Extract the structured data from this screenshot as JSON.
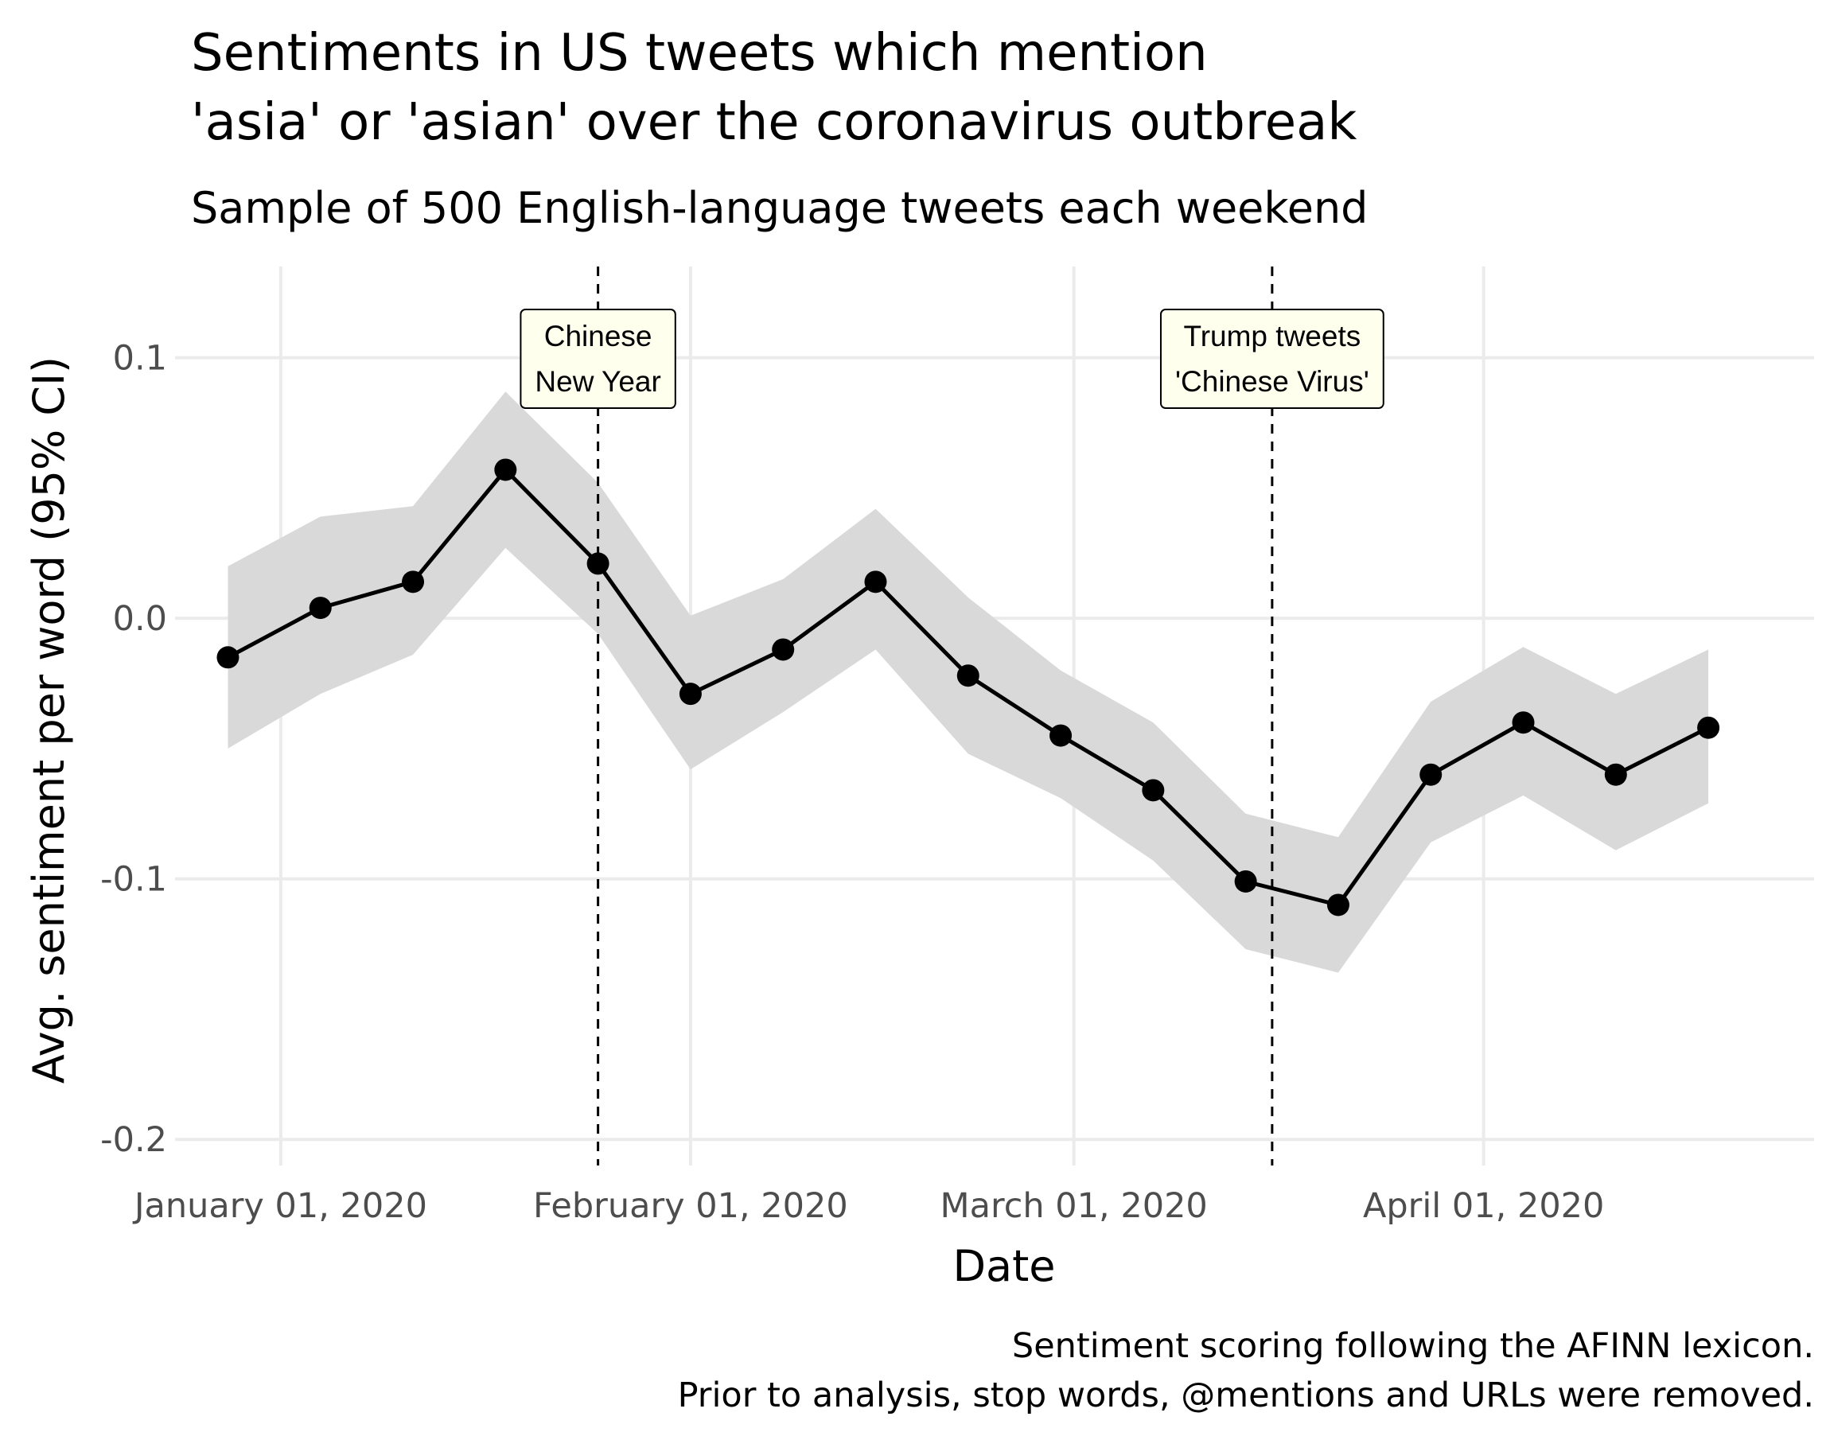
{
  "chart_data": {
    "type": "line",
    "title_lines": [
      "Sentiments in US tweets which mention",
      "'asia' or 'asian' over the coronavirus outbreak"
    ],
    "subtitle": "Sample of 500 English-language tweets each weekend",
    "xlabel": "Date",
    "ylabel": "Avg. sentiment per word (95% CI)",
    "caption_lines": [
      "Sentiment scoring following the AFINN lexicon.",
      "Prior to analysis, stop words, @mentions and URLs were removed."
    ],
    "xlim": [
      "2019-12-24",
      "2020-04-26"
    ],
    "ylim": [
      -0.21,
      0.135
    ],
    "x_ticks": [
      {
        "date": "2020-01-01",
        "label": "January 01, 2020"
      },
      {
        "date": "2020-02-01",
        "label": "February 01, 2020"
      },
      {
        "date": "2020-03-01",
        "label": "March 01, 2020"
      },
      {
        "date": "2020-04-01",
        "label": "April 01, 2020"
      }
    ],
    "y_ticks": [
      {
        "value": 0.1,
        "label": "0.1"
      },
      {
        "value": 0.0,
        "label": "0.0"
      },
      {
        "value": -0.1,
        "label": "-0.1"
      },
      {
        "value": -0.2,
        "label": "-0.2"
      }
    ],
    "grid": true,
    "series": [
      {
        "x": [
          "2019-12-28",
          "2020-01-04",
          "2020-01-11",
          "2020-01-18",
          "2020-01-25",
          "2020-02-01",
          "2020-02-08",
          "2020-02-15",
          "2020-02-22",
          "2020-02-29",
          "2020-03-07",
          "2020-03-14",
          "2020-03-21",
          "2020-03-28",
          "2020-04-04",
          "2020-04-11",
          "2020-04-18"
        ],
        "y": [
          -0.015,
          0.004,
          0.014,
          0.057,
          0.021,
          -0.029,
          -0.012,
          0.014,
          -0.022,
          -0.045,
          -0.066,
          -0.101,
          -0.11,
          -0.06,
          -0.04,
          -0.06,
          -0.042
        ],
        "ci_low": [
          -0.05,
          -0.029,
          -0.014,
          0.027,
          -0.006,
          -0.058,
          -0.036,
          -0.012,
          -0.052,
          -0.069,
          -0.093,
          -0.127,
          -0.136,
          -0.086,
          -0.068,
          -0.089,
          -0.071
        ],
        "ci_high": [
          0.02,
          0.039,
          0.043,
          0.087,
          0.052,
          0.001,
          0.015,
          0.042,
          0.008,
          -0.02,
          -0.04,
          -0.075,
          -0.084,
          -0.032,
          -0.011,
          -0.029,
          -0.012
        ],
        "line_color": "#000000",
        "band_color": "#d9d9d9"
      }
    ],
    "annotations": [
      {
        "date": "2020-01-25",
        "lines": [
          "Chinese",
          "New Year"
        ],
        "box_fill": "#ffffee"
      },
      {
        "date": "2020-03-16",
        "lines": [
          "Trump tweets",
          "'Chinese Virus'"
        ],
        "box_fill": "#ffffee"
      }
    ]
  }
}
